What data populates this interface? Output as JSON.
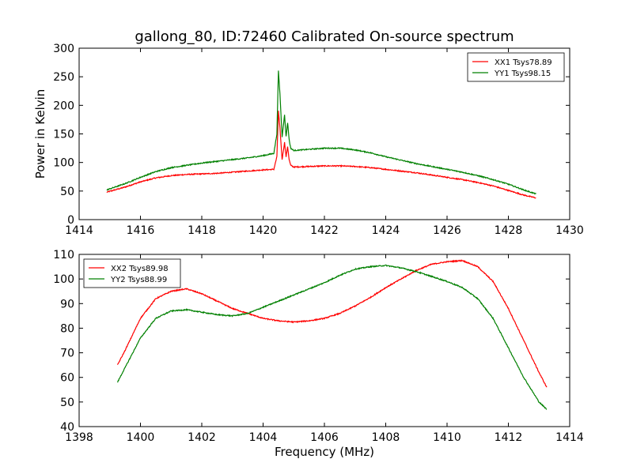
{
  "figure": {
    "title": "gallong_80, ID:72460 Calibrated On-source spectrum"
  },
  "chart_data": [
    {
      "type": "line",
      "title": "gallong_80, ID:72460 Calibrated On-source spectrum",
      "xlabel": "",
      "ylabel": "Power in Kelvin",
      "xlim": [
        1414,
        1430
      ],
      "ylim": [
        0,
        300
      ],
      "xticks": [
        "1414",
        "1416",
        "1418",
        "1420",
        "1422",
        "1424",
        "1426",
        "1428",
        "1430"
      ],
      "yticks": [
        "0",
        "50",
        "100",
        "150",
        "200",
        "250",
        "300"
      ],
      "grid": false,
      "legend_position": "top-right",
      "series": [
        {
          "name": "XX1 Tsys78.89",
          "color": "#ff0000",
          "x": [
            1414.9,
            1415.5,
            1416.0,
            1416.5,
            1417.0,
            1417.5,
            1418.0,
            1418.5,
            1419.0,
            1419.5,
            1420.0,
            1420.35,
            1420.45,
            1420.5,
            1420.55,
            1420.62,
            1420.7,
            1420.75,
            1420.8,
            1420.85,
            1420.9,
            1421.0,
            1421.5,
            1422.0,
            1422.5,
            1423.0,
            1423.5,
            1424.0,
            1424.5,
            1425.0,
            1425.5,
            1426.0,
            1426.5,
            1427.0,
            1427.5,
            1428.0,
            1428.5,
            1428.9
          ],
          "values": [
            48,
            57,
            66,
            73,
            77,
            79,
            80,
            81,
            83,
            85,
            87,
            88,
            110,
            190,
            160,
            105,
            135,
            110,
            128,
            105,
            95,
            92,
            93,
            94,
            94,
            93,
            91,
            88,
            85,
            82,
            78,
            74,
            70,
            65,
            59,
            51,
            43,
            38
          ]
        },
        {
          "name": "YY1 Tsys98.15",
          "color": "#008000",
          "x": [
            1414.9,
            1415.5,
            1416.0,
            1416.5,
            1417.0,
            1417.5,
            1418.0,
            1418.5,
            1419.0,
            1419.5,
            1420.0,
            1420.35,
            1420.45,
            1420.5,
            1420.55,
            1420.62,
            1420.7,
            1420.75,
            1420.8,
            1420.85,
            1420.9,
            1421.0,
            1421.5,
            1422.0,
            1422.5,
            1423.0,
            1423.5,
            1424.0,
            1424.5,
            1425.0,
            1425.5,
            1426.0,
            1426.5,
            1427.0,
            1427.5,
            1428.0,
            1428.5,
            1428.9
          ],
          "values": [
            52,
            63,
            74,
            84,
            91,
            95,
            99,
            102,
            105,
            108,
            112,
            116,
            150,
            260,
            220,
            145,
            183,
            145,
            170,
            140,
            125,
            121,
            123,
            125,
            125,
            122,
            117,
            110,
            104,
            98,
            93,
            88,
            83,
            77,
            70,
            62,
            52,
            45
          ]
        }
      ]
    },
    {
      "type": "line",
      "title": "",
      "xlabel": "Frequency (MHz)",
      "ylabel": "",
      "xlim": [
        1398,
        1414
      ],
      "ylim": [
        40,
        110
      ],
      "xticks": [
        "1398",
        "1400",
        "1402",
        "1404",
        "1406",
        "1408",
        "1410",
        "1412",
        "1414"
      ],
      "yticks": [
        "40",
        "50",
        "60",
        "70",
        "80",
        "90",
        "100",
        "110"
      ],
      "grid": false,
      "legend_position": "top-left",
      "series": [
        {
          "name": "XX2 Tsys89.98",
          "color": "#ff0000",
          "x": [
            1399.25,
            1399.5,
            1400.0,
            1400.5,
            1401.0,
            1401.5,
            1402.0,
            1402.5,
            1403.0,
            1403.5,
            1404.0,
            1404.5,
            1405.0,
            1405.5,
            1406.0,
            1406.5,
            1407.0,
            1407.5,
            1408.0,
            1408.5,
            1409.0,
            1409.5,
            1410.0,
            1410.5,
            1411.0,
            1411.5,
            1412.0,
            1412.5,
            1413.0,
            1413.25
          ],
          "values": [
            65,
            71,
            84,
            92,
            95,
            96,
            94,
            91,
            88,
            86,
            84,
            83,
            82.5,
            83,
            84,
            86,
            89,
            92.5,
            96.5,
            100,
            103.5,
            106,
            107,
            107.5,
            105,
            99,
            88,
            75,
            62,
            56
          ]
        },
        {
          "name": "YY2 Tsys88.99",
          "color": "#008000",
          "x": [
            1399.25,
            1399.5,
            1400.0,
            1400.5,
            1401.0,
            1401.5,
            1402.0,
            1402.5,
            1403.0,
            1403.5,
            1404.0,
            1404.5,
            1405.0,
            1405.5,
            1406.0,
            1406.5,
            1407.0,
            1407.5,
            1408.0,
            1408.5,
            1409.0,
            1409.5,
            1410.0,
            1410.5,
            1411.0,
            1411.5,
            1412.0,
            1412.5,
            1413.0,
            1413.25
          ],
          "values": [
            58,
            64,
            76,
            84,
            87,
            87.5,
            86.5,
            85.5,
            85,
            86,
            88.5,
            91,
            93.5,
            96,
            98.5,
            101.5,
            104,
            105,
            105.5,
            104.5,
            103,
            101,
            99,
            96.5,
            92,
            84,
            72,
            60,
            50,
            47
          ]
        }
      ]
    }
  ]
}
